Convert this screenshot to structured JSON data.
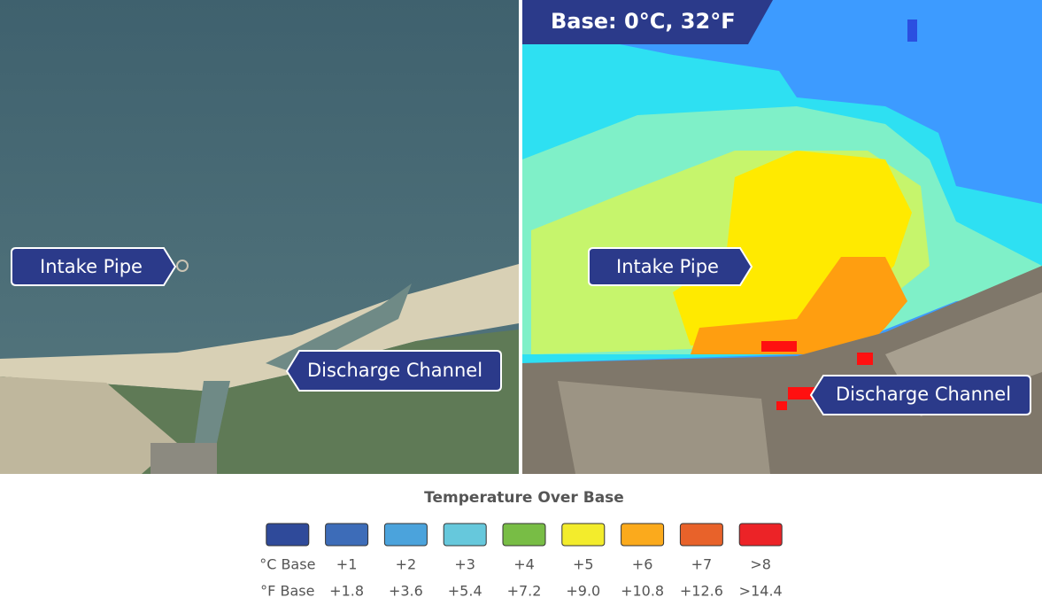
{
  "left_panel": {
    "callouts": [
      "Intake Pipe",
      "Discharge Channel"
    ]
  },
  "right_panel": {
    "badge": "Base: 0°C, 32°F",
    "callouts": [
      "Intake Pipe",
      "Discharge Channel"
    ]
  },
  "legend": {
    "title": "Temperature Over Base",
    "items": [
      {
        "color": "#2f4a9a",
        "celsius": "°C Base",
        "fahrenheit": "°F Base"
      },
      {
        "color": "#3d6cb8",
        "celsius": "+1",
        "fahrenheit": "+1.8"
      },
      {
        "color": "#4ba3dc",
        "celsius": "+2",
        "fahrenheit": "+3.6"
      },
      {
        "color": "#66c8dc",
        "celsius": "+3",
        "fahrenheit": "+5.4"
      },
      {
        "color": "#78bd45",
        "celsius": "+4",
        "fahrenheit": "+7.2"
      },
      {
        "color": "#f3ec2c",
        "celsius": "+5",
        "fahrenheit": "+9.0"
      },
      {
        "color": "#fbaa1c",
        "celsius": "+6",
        "fahrenheit": "+10.8"
      },
      {
        "color": "#e8622a",
        "celsius": "+7",
        "fahrenheit": "+12.6"
      },
      {
        "color": "#ec2327",
        "celsius": ">8",
        "fahrenheit": ">14.4"
      }
    ]
  }
}
